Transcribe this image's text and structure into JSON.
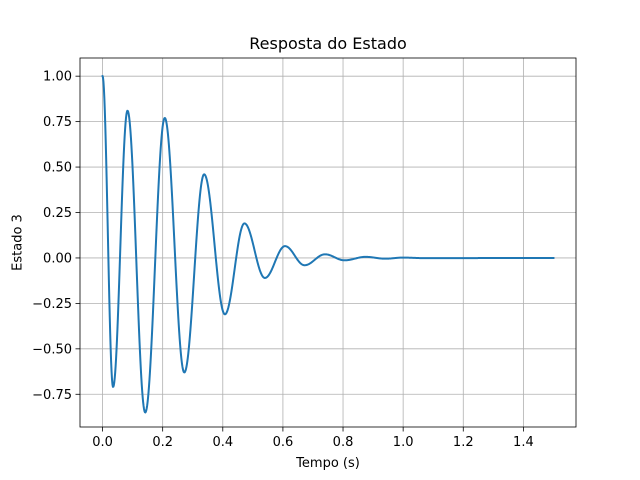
{
  "chart_data": {
    "type": "line",
    "title": "Resposta do Estado",
    "xlabel": "Tempo (s)",
    "ylabel": "Estado 3",
    "xlim": [
      -0.075,
      1.575
    ],
    "ylim": [
      -0.93,
      1.1
    ],
    "xticks": [
      0.0,
      0.2,
      0.4,
      0.6,
      0.8,
      1.0,
      1.2,
      1.4
    ],
    "xtick_labels": [
      "0.0",
      "0.2",
      "0.4",
      "0.6",
      "0.8",
      "1.0",
      "1.2",
      "1.4"
    ],
    "yticks": [
      -0.75,
      -0.5,
      -0.25,
      0.0,
      0.25,
      0.5,
      0.75,
      1.0
    ],
    "ytick_labels": [
      "−0.75",
      "−0.50",
      "−0.25",
      "0.00",
      "0.25",
      "0.50",
      "0.75",
      "1.00"
    ],
    "grid": true,
    "legend": "none",
    "series": [
      {
        "color": "#1f77b4",
        "x": [
          0.0,
          0.035,
          0.083,
          0.142,
          0.207,
          0.272,
          0.338,
          0.407,
          0.472,
          0.54,
          0.607,
          0.672,
          0.74,
          0.805,
          0.875,
          0.94,
          1.0,
          1.07,
          1.5
        ],
        "y": [
          1.0,
          -0.71,
          0.81,
          -0.85,
          0.77,
          -0.63,
          0.46,
          -0.31,
          0.19,
          -0.11,
          0.065,
          -0.04,
          0.02,
          -0.013,
          0.006,
          -0.004,
          0.002,
          -0.001,
          0.0
        ]
      }
    ]
  }
}
